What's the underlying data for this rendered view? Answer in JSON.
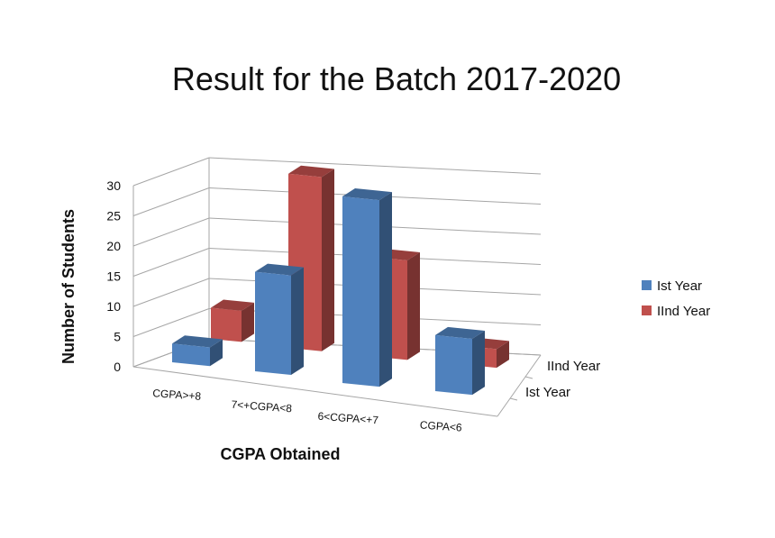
{
  "chart_data": {
    "type": "bar",
    "variant": "3d-column",
    "title": "Result for the Batch 2017-2020",
    "xlabel": "CGPA Obtained",
    "ylabel": "Number of Students",
    "categories": [
      "CGPA>+8",
      "7<+CGPA<8",
      "6<CGPA<+7",
      "CGPA<6"
    ],
    "yticks": [
      "0",
      "5",
      "10",
      "15",
      "20",
      "25",
      "30"
    ],
    "ylim": [
      0,
      30
    ],
    "grid": true,
    "legend_position": "right",
    "series": [
      {
        "name": "Ist Year",
        "color": "#4f81bd",
        "values": [
          3,
          16,
          30,
          9
        ]
      },
      {
        "name": "IInd Year",
        "color": "#c0504d",
        "values": [
          5,
          28,
          16,
          3
        ]
      }
    ],
    "depth_labels": [
      "Ist Year",
      "IInd Year"
    ]
  },
  "legend": {
    "items": [
      {
        "label": "Ist Year",
        "color": "#4f81bd"
      },
      {
        "label": "IInd Year",
        "color": "#c0504d"
      }
    ]
  }
}
